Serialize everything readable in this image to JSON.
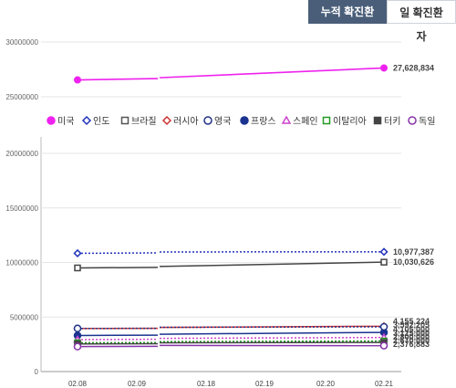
{
  "tabs": [
    {
      "label": "누적 확진환자",
      "active": true
    },
    {
      "label": "일 확진환자",
      "active": false
    }
  ],
  "chart_data": [
    {
      "type": "line",
      "role": "top-panel",
      "ylim": [
        20000000,
        30000000
      ],
      "yticks": [
        30000000,
        25000000
      ],
      "ytick_labels": [
        "30000000",
        "25000000"
      ],
      "series": [
        {
          "name": "미국",
          "color": "#ee22ee",
          "x": [
            "02.08",
            "02.09",
            "02.21"
          ],
          "values": [
            26540000,
            26720000,
            27628834
          ],
          "end_label": "27,628,834"
        }
      ]
    },
    {
      "type": "line",
      "role": "bottom-panel",
      "categories": [
        "02.08",
        "02.09",
        "02.18",
        "02.19",
        "02.20",
        "02.21"
      ],
      "ylim": [
        0,
        22000000
      ],
      "yticks": [
        20000000,
        15000000,
        10000000,
        5000000,
        0
      ],
      "ytick_labels": [
        "20000000",
        "15000000",
        "10000000",
        "5000000",
        "0"
      ],
      "legend": [
        {
          "name": "미국",
          "color": "#ee22ee",
          "marker": "circle-filled"
        },
        {
          "name": "인도",
          "color": "#2233bb",
          "marker": "diamond"
        },
        {
          "name": "브라질",
          "color": "#555555",
          "marker": "square"
        },
        {
          "name": "러시아",
          "color": "#cc3333",
          "marker": "diamond"
        },
        {
          "name": "영국",
          "color": "#223388",
          "marker": "circle"
        },
        {
          "name": "프랑스",
          "color": "#1a3390",
          "marker": "circle-filled"
        },
        {
          "name": "스페인",
          "color": "#cc44cc",
          "marker": "triangle"
        },
        {
          "name": "이탈리아",
          "color": "#229922",
          "marker": "square"
        },
        {
          "name": "터키",
          "color": "#444444",
          "marker": "square-filled"
        },
        {
          "name": "독일",
          "color": "#8833aa",
          "marker": "circle"
        }
      ],
      "series": [
        {
          "name": "인도",
          "color": "#2233bb",
          "dash": "2,2",
          "marker": "diamond",
          "x": [
            "02.08",
            "02.09",
            "02.21"
          ],
          "values": [
            10840000,
            10880000,
            10977387
          ],
          "end_label": "10,977,387"
        },
        {
          "name": "브라질",
          "color": "#444444",
          "dash": "",
          "marker": "square",
          "x": [
            "02.08",
            "02.09",
            "02.21"
          ],
          "values": [
            9500000,
            9550000,
            10030626
          ],
          "end_label": "10,030,626"
        },
        {
          "name": "러시아",
          "color": "#cc3333",
          "dash": "",
          "marker": "diamond",
          "x": [
            "02.08",
            "02.09",
            "02.21"
          ],
          "values": [
            3940000,
            3960000,
            4155224
          ],
          "end_label": "4,155,224"
        },
        {
          "name": "프랑스",
          "color": "#1a3390",
          "dash": "",
          "marker": "circle-filled",
          "x": [
            "02.08",
            "02.09",
            "02.21"
          ],
          "values": [
            3310000,
            3340000,
            3592205
          ],
          "end_label": "3,592,205"
        },
        {
          "name": "영국",
          "color": "#223388",
          "dash": "2,2",
          "marker": "circle",
          "x": [
            "02.08",
            "02.09",
            "02.21"
          ],
          "values": [
            3950000,
            3970000,
            4105000
          ],
          "end_label": "4,105,000"
        },
        {
          "name": "스페인",
          "color": "#cc44cc",
          "dash": "2,2",
          "marker": "triangle",
          "x": [
            "02.08",
            "02.09",
            "02.21"
          ],
          "values": [
            2930000,
            2960000,
            3125000
          ],
          "end_label": "3,125,000"
        },
        {
          "name": "이탈리아",
          "color": "#229922",
          "dash": "2,2",
          "marker": "square",
          "x": [
            "02.08",
            "02.09",
            "02.21"
          ],
          "values": [
            2640000,
            2660000,
            2800000
          ],
          "end_label": "2,800,000"
        },
        {
          "name": "터키",
          "color": "#444444",
          "dash": "",
          "marker": "square-filled",
          "x": [
            "02.08",
            "02.09",
            "02.21"
          ],
          "values": [
            2530000,
            2550000,
            2670000
          ],
          "end_label": "2,670,000"
        },
        {
          "name": "독일",
          "color": "#8833aa",
          "dash": "",
          "marker": "circle",
          "x": [
            "02.08",
            "02.09",
            "02.21"
          ],
          "values": [
            2290000,
            2310000,
            2376883
          ],
          "end_label": "2,376,883"
        }
      ]
    }
  ]
}
